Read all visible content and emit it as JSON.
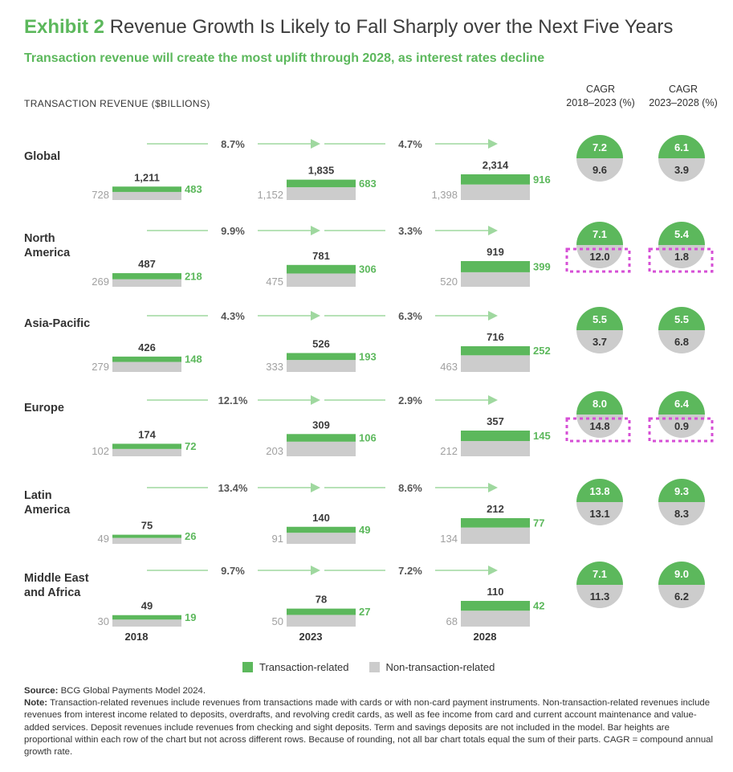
{
  "header": {
    "exhibit": "Exhibit 2",
    "title": "Revenue Growth Is Likely to Fall Sharply over the Next Five Years",
    "subtitle": "Transaction revenue will create the most uplift through 2028, as interest rates decline"
  },
  "colors": {
    "green": "#5cb85c",
    "gray": "#cccccc",
    "arrow": "#9fd89f",
    "highlight": "#d64fd6"
  },
  "chart_data": {
    "type": "bar",
    "unit_label": "TRANSACTION REVENUE ($BILLIONS)",
    "years": [
      "2018",
      "2023",
      "2028"
    ],
    "cagr_headers": [
      {
        "line1": "CAGR",
        "line2": "2018–2023 (%)"
      },
      {
        "line1": "CAGR",
        "line2": "2023–2028 (%)"
      }
    ],
    "legend": [
      {
        "label": "Transaction-related",
        "color": "#5cb85c"
      },
      {
        "label": "Non-transaction-related",
        "color": "#cccccc"
      }
    ],
    "regions": [
      {
        "name": "Global",
        "totals": [
          "1,211",
          "1,835",
          "2,314"
        ],
        "transaction": [
          483,
          683,
          916
        ],
        "non_transaction": [
          "728",
          "1,152",
          "1,398"
        ],
        "growth": [
          "8.7%",
          "4.7%"
        ],
        "cagr_2018_2023": {
          "transaction": "7.2",
          "non_transaction": "9.6"
        },
        "cagr_2023_2028": {
          "transaction": "6.1",
          "non_transaction": "3.9"
        },
        "highlighted": false
      },
      {
        "name": "North America",
        "totals": [
          "487",
          "781",
          "919"
        ],
        "transaction": [
          218,
          306,
          399
        ],
        "non_transaction": [
          "269",
          "475",
          "520"
        ],
        "growth": [
          "9.9%",
          "3.3%"
        ],
        "cagr_2018_2023": {
          "transaction": "7.1",
          "non_transaction": "12.0"
        },
        "cagr_2023_2028": {
          "transaction": "5.4",
          "non_transaction": "1.8"
        },
        "highlighted": true
      },
      {
        "name": "Asia-Pacific",
        "totals": [
          "426",
          "526",
          "716"
        ],
        "transaction": [
          148,
          193,
          252
        ],
        "non_transaction": [
          "279",
          "333",
          "463"
        ],
        "growth": [
          "4.3%",
          "6.3%"
        ],
        "cagr_2018_2023": {
          "transaction": "5.5",
          "non_transaction": "3.7"
        },
        "cagr_2023_2028": {
          "transaction": "5.5",
          "non_transaction": "6.8"
        },
        "highlighted": false
      },
      {
        "name": "Europe",
        "totals": [
          "174",
          "309",
          "357"
        ],
        "transaction": [
          72,
          106,
          145
        ],
        "non_transaction": [
          "102",
          "203",
          "212"
        ],
        "growth": [
          "12.1%",
          "2.9%"
        ],
        "cagr_2018_2023": {
          "transaction": "8.0",
          "non_transaction": "14.8"
        },
        "cagr_2023_2028": {
          "transaction": "6.4",
          "non_transaction": "0.9"
        },
        "highlighted": true
      },
      {
        "name": "Latin America",
        "totals": [
          "75",
          "140",
          "212"
        ],
        "transaction": [
          26,
          49,
          77
        ],
        "non_transaction": [
          "49",
          "91",
          "134"
        ],
        "growth": [
          "13.4%",
          "8.6%"
        ],
        "cagr_2018_2023": {
          "transaction": "13.8",
          "non_transaction": "13.1"
        },
        "cagr_2023_2028": {
          "transaction": "9.3",
          "non_transaction": "8.3"
        },
        "highlighted": false
      },
      {
        "name": "Middle East and Africa",
        "totals": [
          "49",
          "78",
          "110"
        ],
        "transaction": [
          19,
          27,
          42
        ],
        "non_transaction": [
          "30",
          "50",
          "68"
        ],
        "growth": [
          "9.7%",
          "7.2%"
        ],
        "cagr_2018_2023": {
          "transaction": "7.1",
          "non_transaction": "11.3"
        },
        "cagr_2023_2028": {
          "transaction": "9.0",
          "non_transaction": "6.2"
        },
        "highlighted": false
      }
    ]
  },
  "footer": {
    "source_label": "Source:",
    "source_text": " BCG Global Payments Model 2024.",
    "note_label": "Note:",
    "note_text": " Transaction-related revenues include revenues from transactions made with cards or with non-card payment instruments. Non-transaction-related revenues include revenues from interest income related to deposits, overdrafts, and revolving credit cards, as well as fee income from card and current account maintenance and value-added services. Deposit revenues include revenues from checking and sight deposits. Term and savings deposits are not included in the model. Bar heights are proportional within each row of the chart but not across different rows. Because of rounding, not all bar chart totals equal the sum of their parts. CAGR = compound annual growth rate."
  }
}
